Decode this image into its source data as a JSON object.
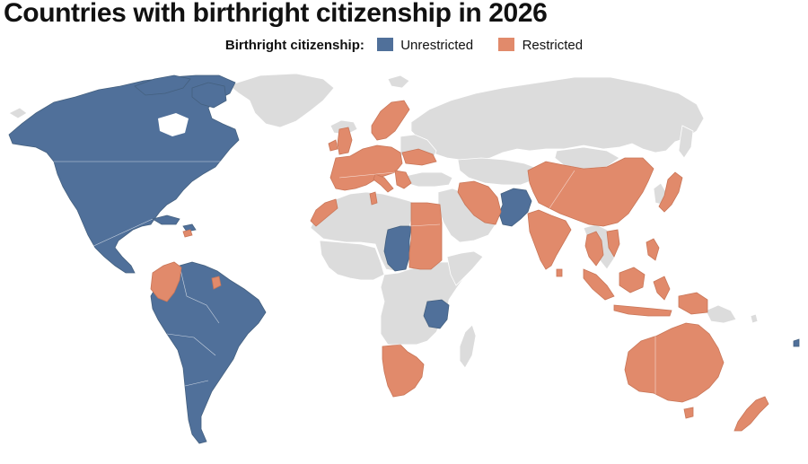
{
  "title": "Countries with birthright citizenship in 2026",
  "legend": {
    "title": "Birthright citizenship:",
    "items": [
      {
        "label": "Unrestricted",
        "color": "#50709a"
      },
      {
        "label": "Restricted",
        "color": "#e18a6b"
      }
    ]
  },
  "colors": {
    "unrestricted": "#50709a",
    "restricted": "#e18a6b",
    "no_birthright": "#dcdcdc",
    "background": "#ffffff"
  }
}
